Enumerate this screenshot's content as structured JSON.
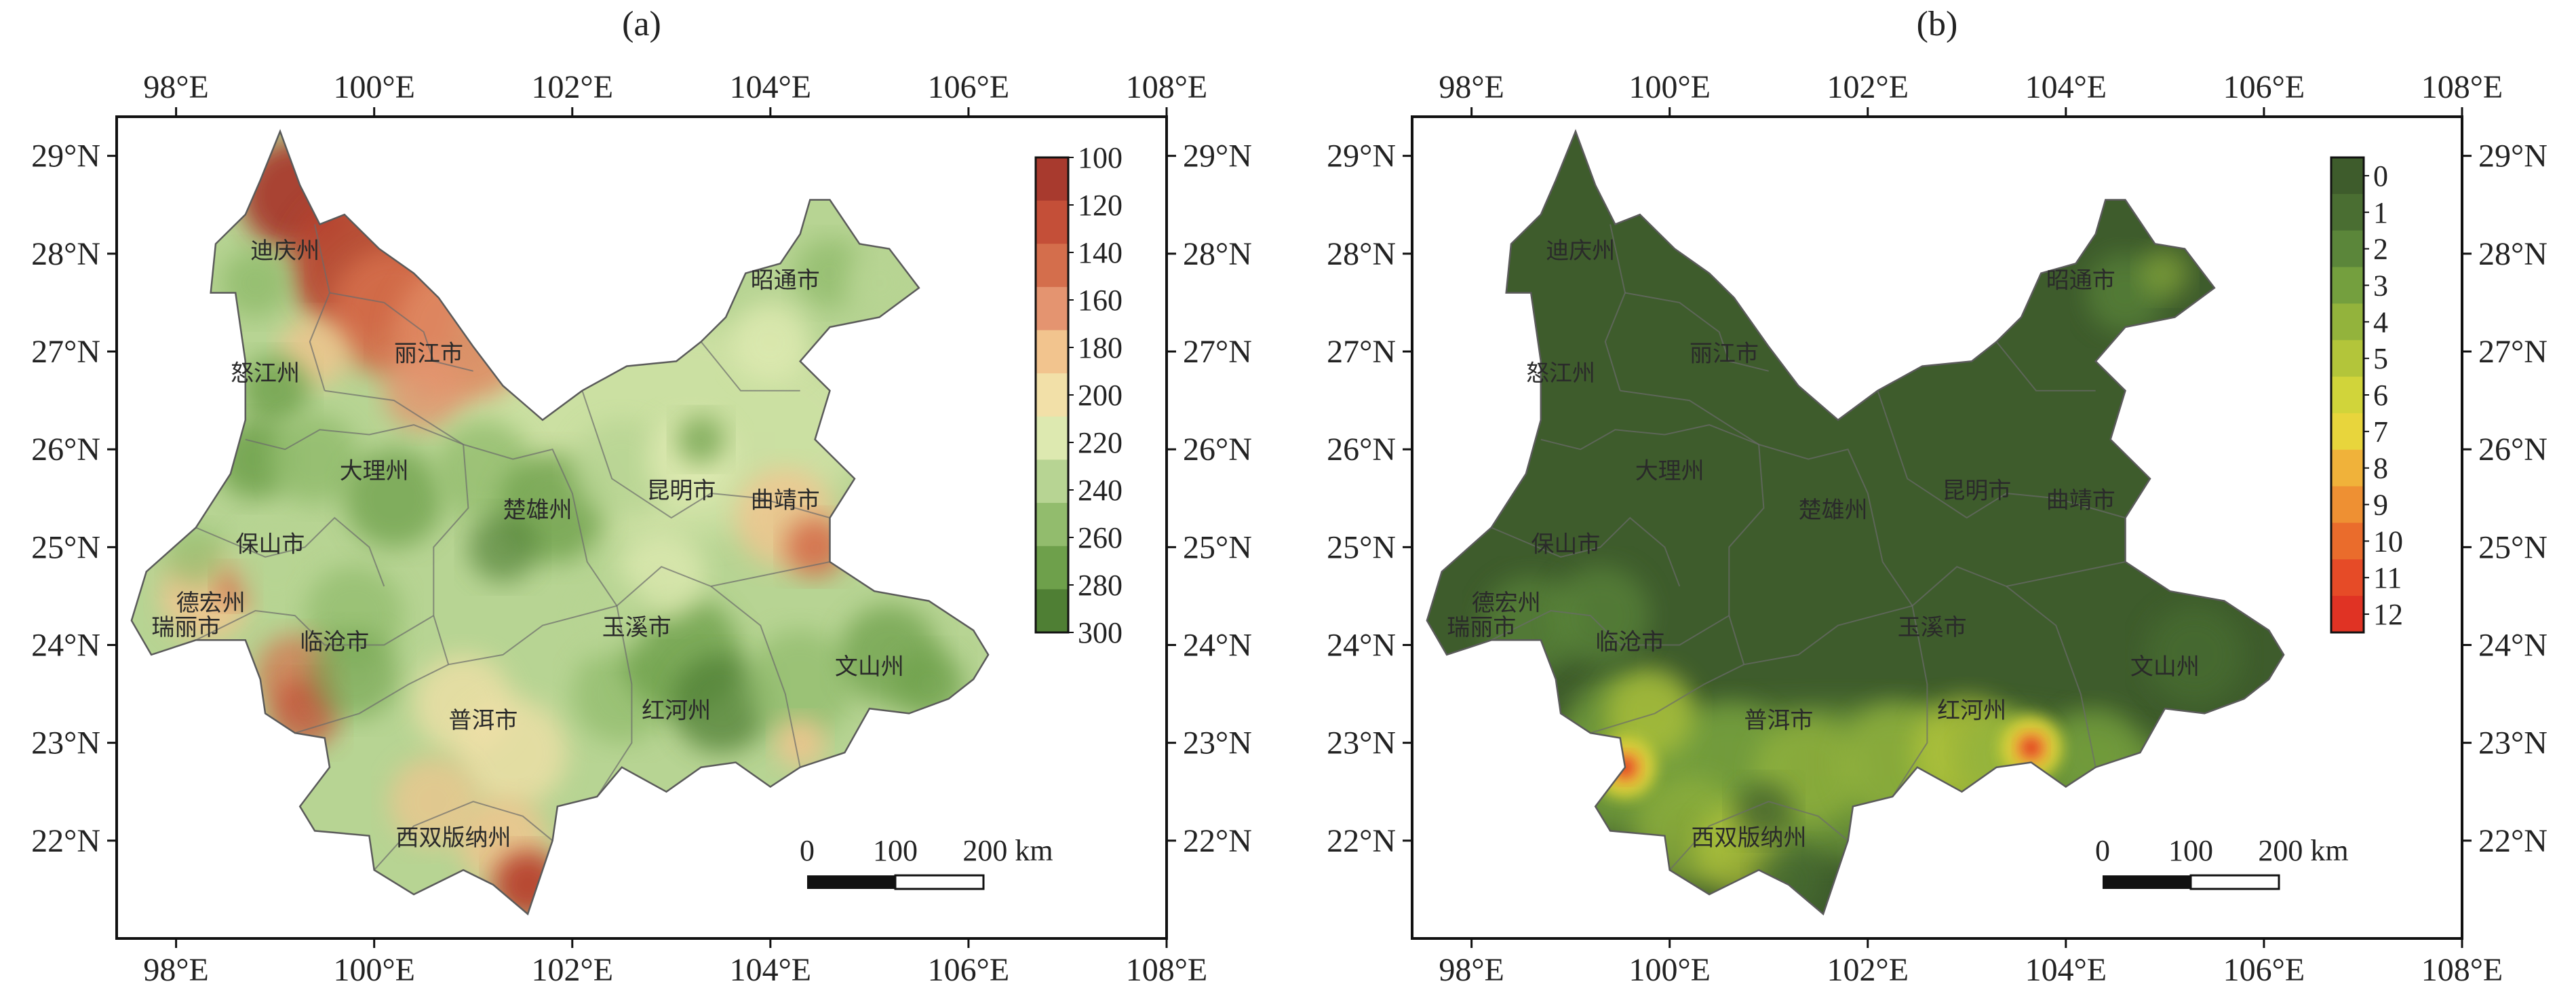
{
  "panels": [
    {
      "id": "a",
      "label": "(a)",
      "lon_ticks": [
        "98°E",
        "100°E",
        "102°E",
        "104°E",
        "106°E",
        "108°E"
      ],
      "lat_ticks": [
        "29°N",
        "28°N",
        "27°N",
        "26°N",
        "25°N",
        "24°N",
        "23°N",
        "22°N"
      ],
      "colorbar": {
        "labels": [
          "100",
          "120",
          "140",
          "160",
          "180",
          "200",
          "220",
          "240",
          "260",
          "280",
          "300"
        ],
        "colors": [
          "#a83a2e",
          "#c44f38",
          "#d46e4c",
          "#e49470",
          "#f2c48e",
          "#f2e0a8",
          "#dde9b0",
          "#b7d493",
          "#92bc6d",
          "#6ea04b",
          "#4f7f34"
        ]
      },
      "scale_bar": {
        "labels": [
          "0",
          "100",
          "200 km"
        ]
      },
      "regions": [
        "迪庆州",
        "怒江州",
        "丽江市",
        "大理州",
        "楚雄州",
        "昆明市",
        "曲靖市",
        "保山市",
        "德宏州",
        "瑞丽市",
        "临沧市",
        "玉溪市",
        "红河州",
        "文山州",
        "普洱市",
        "西双版纳州",
        "昭通市"
      ]
    },
    {
      "id": "b",
      "label": "(b)",
      "lon_ticks": [
        "98°E",
        "100°E",
        "102°E",
        "104°E",
        "106°E",
        "108°E"
      ],
      "lat_ticks": [
        "29°N",
        "28°N",
        "27°N",
        "26°N",
        "25°N",
        "24°N",
        "23°N",
        "22°N"
      ],
      "colorbar": {
        "labels": [
          "0",
          "1",
          "2",
          "3",
          "4",
          "5",
          "6",
          "7",
          "8",
          "9",
          "10",
          "11",
          "12"
        ],
        "colors": [
          "#3e5c2c",
          "#4a6e32",
          "#5b863a",
          "#749f3e",
          "#93b33c",
          "#b3c53a",
          "#d1d43a",
          "#e8d53c",
          "#f0b23a",
          "#ee9033",
          "#ea6c2c",
          "#e64b27",
          "#e03324"
        ]
      },
      "scale_bar": {
        "labels": [
          "0",
          "100",
          "200 km"
        ]
      },
      "regions": [
        "迪庆州",
        "怒江州",
        "丽江市",
        "大理州",
        "楚雄州",
        "昆明市",
        "曲靖市",
        "保山市",
        "德宏州",
        "瑞丽市",
        "临沧市",
        "玉溪市",
        "红河州",
        "文山州",
        "普洱市",
        "西双版纳州",
        "昭通市"
      ]
    }
  ]
}
